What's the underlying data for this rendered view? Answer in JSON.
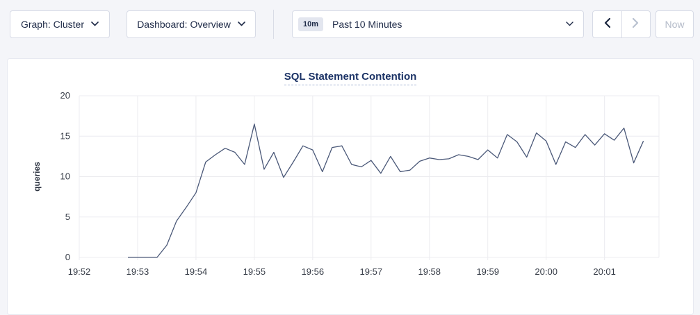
{
  "toolbar": {
    "graph_dropdown": {
      "label": "Graph: Cluster"
    },
    "dashboard_dropdown": {
      "label": "Dashboard: Overview"
    },
    "time_range": {
      "badge": "10m",
      "label": "Past 10 Minutes"
    },
    "now_button": {
      "label": "Now"
    }
  },
  "colors": {
    "line": "#4a5878",
    "grid": "#ececf0",
    "axis_text": "#353b46",
    "axis_label": "#2b3240",
    "title": "#1c3366",
    "page_bg": "#f4f5f9",
    "panel_bg": "#ffffff",
    "enabled_icon": "#1c2740",
    "disabled_icon": "#b9c1d0"
  },
  "chart_data": {
    "type": "line",
    "title": "SQL Statement Contention",
    "xlabel": "",
    "ylabel": "queries",
    "ylim": [
      0,
      20
    ],
    "yticks": [
      0,
      5,
      10,
      15,
      20
    ],
    "grid": true,
    "legend": "none",
    "x_axis_unit": "time (HH:MM), seconds offset from first tick",
    "xlim_seconds": [
      0,
      596
    ],
    "xticks": [
      {
        "t": 0,
        "label": "19:52"
      },
      {
        "t": 60,
        "label": "19:53"
      },
      {
        "t": 120,
        "label": "19:54"
      },
      {
        "t": 180,
        "label": "19:55"
      },
      {
        "t": 240,
        "label": "19:56"
      },
      {
        "t": 300,
        "label": "19:57"
      },
      {
        "t": 360,
        "label": "19:58"
      },
      {
        "t": 420,
        "label": "19:59"
      },
      {
        "t": 480,
        "label": "20:00"
      },
      {
        "t": 540,
        "label": "20:01"
      }
    ],
    "series": [
      {
        "name": "queries",
        "x_seconds": [
          50,
          60,
          70,
          80,
          90,
          100,
          110,
          120,
          130,
          140,
          150,
          160,
          170,
          180,
          190,
          200,
          210,
          220,
          230,
          240,
          250,
          260,
          270,
          280,
          290,
          300,
          310,
          320,
          330,
          340,
          350,
          360,
          370,
          380,
          390,
          400,
          410,
          420,
          430,
          440,
          450,
          460,
          470,
          480,
          490,
          500,
          510,
          520,
          530,
          540,
          550,
          560,
          570,
          580
        ],
        "values": [
          0,
          0,
          0,
          0,
          1.5,
          4.5,
          6.2,
          8,
          11.8,
          12.7,
          13.5,
          13,
          11.5,
          16.5,
          10.9,
          13,
          9.9,
          11.8,
          13.8,
          13.3,
          10.6,
          13.6,
          13.8,
          11.5,
          11.2,
          12,
          10.4,
          12.5,
          10.6,
          10.8,
          11.9,
          12.3,
          12.1,
          12.2,
          12.7,
          12.5,
          12.1,
          13.3,
          12.3,
          15.2,
          14.3,
          12.4,
          15.4,
          14.4,
          11.5,
          14.3,
          13.6,
          15.2,
          13.9,
          15.3,
          14.5,
          16,
          11.7,
          14.4
        ]
      }
    ]
  }
}
